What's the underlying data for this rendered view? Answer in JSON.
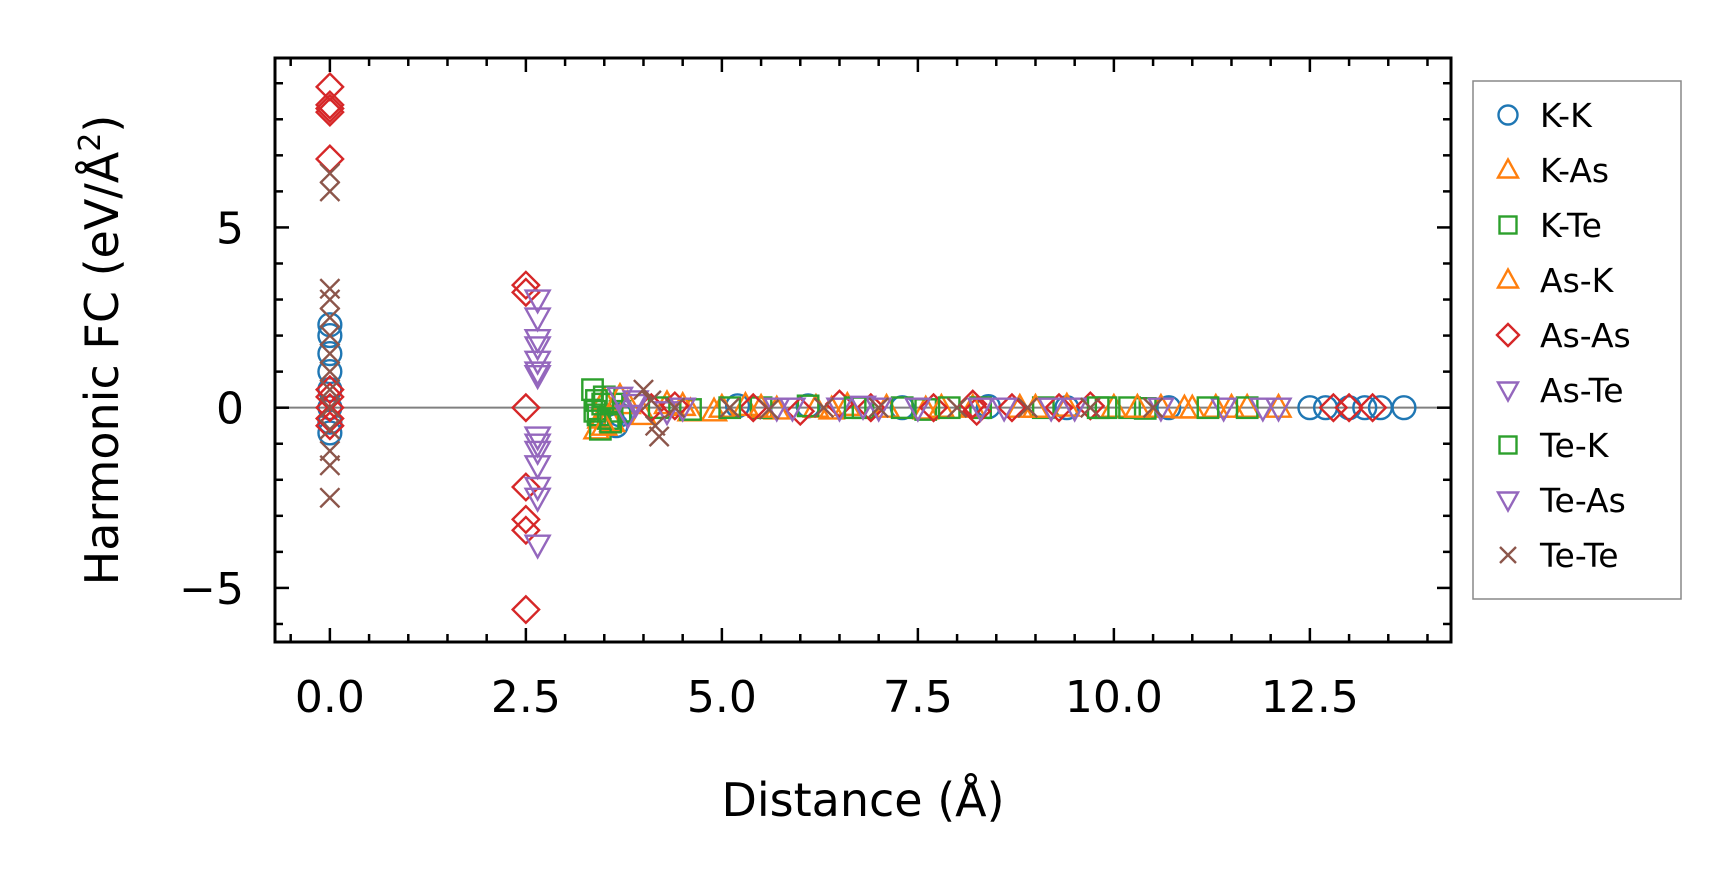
{
  "chart_data": {
    "type": "scatter",
    "title": "",
    "xlabel": "Distance (Å)",
    "ylabel": "Harmonic FC (eV/Å",
    "ylabel_sup": "2",
    "ylabel_close": ")",
    "xlim": [
      -0.7,
      14.3
    ],
    "ylim": [
      -6.5,
      9.7
    ],
    "xticks": [
      0.0,
      2.5,
      5.0,
      7.5,
      10.0,
      12.5
    ],
    "xtick_labels": [
      "0.0",
      "2.5",
      "5.0",
      "7.5",
      "10.0",
      "12.5"
    ],
    "yticks": [
      -5,
      0,
      5
    ],
    "ytick_labels": [
      "−5",
      "0",
      "5"
    ],
    "zero_line": 0,
    "legend_position": "outside-right",
    "series": [
      {
        "name": "K-K",
        "marker": "circle",
        "color": "#1f77b4",
        "x": [
          0,
          0,
          0,
          0,
          0,
          0,
          0,
          0,
          3.6,
          3.65,
          3.7,
          5.2,
          6.1,
          7.3,
          8.4,
          9.4,
          10.7,
          12.5,
          12.7,
          13.0,
          13.2,
          13.4,
          13.7
        ],
        "y": [
          2.3,
          2.0,
          1.5,
          1.0,
          0.5,
          0.0,
          -0.4,
          -0.7,
          -0.3,
          -0.5,
          -0.2,
          0.05,
          0.05,
          0.0,
          0.03,
          0.0,
          0.0,
          0.0,
          0.0,
          0.0,
          0.0,
          0.0,
          0.0
        ]
      },
      {
        "name": "K-As",
        "marker": "triangle-up",
        "color": "#ff7f0e",
        "x": [
          3.4,
          3.45,
          3.5,
          3.6,
          3.8,
          4.0,
          4.3,
          4.6,
          4.9,
          5.0,
          5.3,
          5.7,
          6.2,
          6.6,
          7.1,
          7.6,
          8.2,
          8.8,
          9.4,
          10.0,
          10.6,
          10.9,
          11.3,
          11.5,
          11.7,
          12.1
        ],
        "y": [
          -0.6,
          -0.3,
          0.2,
          -0.4,
          0.1,
          -0.2,
          0.1,
          -0.1,
          -0.1,
          0.0,
          0.05,
          -0.05,
          0.0,
          0.05,
          0.0,
          -0.05,
          0.0,
          0.0,
          0.03,
          0.0,
          0.0,
          -0.02,
          0.0,
          0.0,
          0.0,
          0.0
        ]
      },
      {
        "name": "K-Te",
        "marker": "square",
        "color": "#2ca02c",
        "x": [
          3.35,
          3.4,
          3.42,
          3.45,
          3.5,
          3.55,
          3.6,
          3.7,
          4.2,
          4.6,
          5.5,
          6.1,
          6.8,
          7.3,
          7.6,
          8.3,
          9.1,
          9.9,
          10.2,
          10.4,
          11.7
        ],
        "y": [
          0.5,
          0.2,
          -0.2,
          -0.6,
          0.3,
          -0.3,
          0.1,
          -0.1,
          0.0,
          -0.05,
          0.0,
          0.05,
          0.0,
          0.0,
          -0.05,
          0.0,
          0.0,
          0.0,
          0.0,
          -0.02,
          0.0
        ]
      },
      {
        "name": "As-K",
        "marker": "triangle-up",
        "color": "#ff7f0e",
        "x": [
          3.5,
          3.7,
          4.5,
          5.5,
          6.4,
          7.8,
          9.0,
          10.3,
          11.0
        ],
        "y": [
          -0.5,
          0.3,
          0.05,
          0.0,
          -0.05,
          0.0,
          0.0,
          0.0,
          -0.02
        ]
      },
      {
        "name": "As-As",
        "marker": "diamond",
        "color": "#d62728",
        "x": [
          0,
          0,
          0,
          0,
          0,
          0,
          0,
          0,
          0,
          0,
          2.5,
          2.5,
          2.5,
          2.5,
          2.5,
          2.5,
          2.5,
          4.1,
          4.4,
          5.4,
          6.0,
          6.5,
          6.9,
          7.7,
          8.2,
          8.25,
          8.7,
          9.3,
          9.7,
          12.8,
          13.0,
          13.3
        ],
        "y": [
          8.9,
          8.4,
          8.2,
          8.3,
          6.9,
          0.5,
          0.3,
          -0.3,
          -0.5,
          0.0,
          3.4,
          3.2,
          0.0,
          -2.2,
          -3.1,
          -3.4,
          -5.6,
          0.0,
          0.05,
          0.0,
          -0.1,
          0.1,
          0.0,
          0.0,
          0.1,
          -0.1,
          0.0,
          0.0,
          0.05,
          0.0,
          0.0,
          0.0
        ]
      },
      {
        "name": "As-Te",
        "marker": "triangle-down",
        "color": "#9467bd",
        "x": [
          2.65,
          2.65,
          2.65,
          2.65,
          2.65,
          2.65,
          2.65,
          2.65,
          2.65,
          2.65,
          3.9,
          4.3,
          5.7,
          6.5,
          7.0,
          7.5,
          8.6,
          9.5,
          10.6,
          11.4
        ],
        "y": [
          3.0,
          2.5,
          1.7,
          1.3,
          0.9,
          -0.8,
          -1.2,
          -1.6,
          -2.5,
          -3.8,
          0.2,
          -0.1,
          0.0,
          0.0,
          0.0,
          0.0,
          0.0,
          0.0,
          0.0,
          0.0
        ]
      },
      {
        "name": "Te-K",
        "marker": "square",
        "color": "#2ca02c",
        "x": [
          3.38,
          3.48,
          3.58,
          5.1,
          6.7,
          7.9,
          9.8,
          11.2
        ],
        "y": [
          -0.1,
          0.1,
          -0.4,
          0.0,
          0.0,
          0.0,
          0.0,
          0.0
        ]
      },
      {
        "name": "Te-As",
        "marker": "triangle-down",
        "color": "#9467bd",
        "x": [
          2.65,
          2.65,
          2.65,
          2.65,
          3.7,
          3.8,
          3.9,
          4.5,
          5.9,
          6.8,
          8.3,
          9.2,
          11.9,
          12.1
        ],
        "y": [
          1.9,
          1.0,
          -1.0,
          -2.2,
          0.3,
          -0.2,
          0.1,
          0.0,
          0.0,
          0.05,
          0.0,
          0.0,
          0.0,
          0.0
        ]
      },
      {
        "name": "Te-Te",
        "marker": "x",
        "color": "#8c564b",
        "x": [
          0,
          0,
          0,
          0,
          0,
          0,
          0,
          0,
          0,
          0,
          0,
          0,
          0,
          0,
          4.0,
          4.1,
          4.15,
          4.2,
          4.4,
          5.1,
          5.6,
          6.3,
          7.0,
          8.0,
          8.9,
          9.7,
          10.5
        ],
        "y": [
          6.5,
          6.0,
          3.3,
          3.0,
          2.5,
          2.0,
          1.5,
          1.0,
          0.5,
          0.0,
          -0.6,
          -1.2,
          -1.6,
          -2.5,
          0.5,
          0.2,
          -0.5,
          -0.8,
          0.0,
          0.0,
          -0.05,
          0.0,
          0.0,
          0.0,
          0.0,
          0.0,
          0.0
        ]
      }
    ]
  }
}
